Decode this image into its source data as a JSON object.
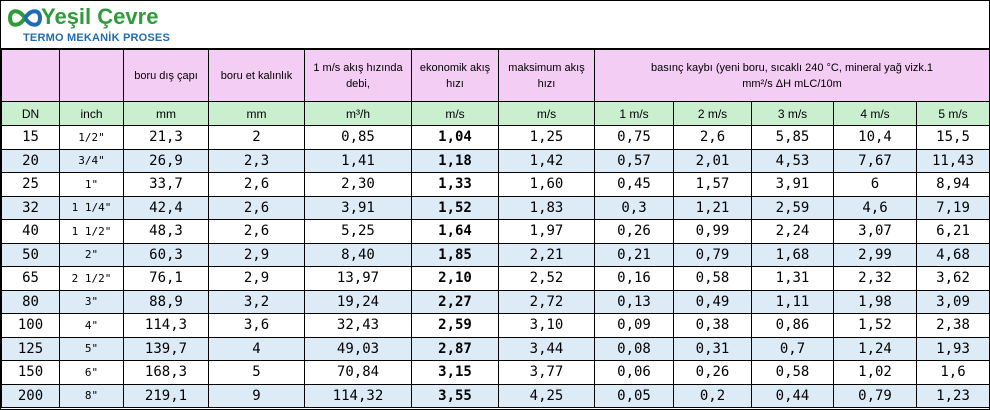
{
  "header": {
    "brand": "Yeşil Çevre",
    "tagline": "TERMO MEKANİK PROSES"
  },
  "table": {
    "column_headers": [
      "boru dış çapı",
      "boru et kalınlık",
      "1 m/s akış hızında debi,",
      "ekonomik akış hızı",
      "maksimum akış hızı"
    ],
    "pressure_header": "basınç kaybı (yeni boru, sıcaklı 240 °C, mineral yağ vizk.1 mm²/s  ΔH mLC/10m",
    "units": [
      "DN",
      "inch",
      "mm",
      "mm",
      "m³/h",
      "m/s",
      "m/s",
      "1 m/s",
      "2 m/s",
      "3 m/s",
      "4 m/s",
      "5 m/s"
    ],
    "rows": [
      [
        "15",
        "1/2\"",
        "21,3",
        "2",
        "0,85",
        "1,04",
        "1,25",
        "0,75",
        "2,6",
        "5,85",
        "10,4",
        "15,5"
      ],
      [
        "20",
        "3/4\"",
        "26,9",
        "2,3",
        "1,41",
        "1,18",
        "1,42",
        "0,57",
        "2,01",
        "4,53",
        "7,67",
        "11,43"
      ],
      [
        "25",
        "1\"",
        "33,7",
        "2,6",
        "2,30",
        "1,33",
        "1,60",
        "0,45",
        "1,57",
        "3,91",
        "6",
        "8,94"
      ],
      [
        "32",
        "1 1/4\"",
        "42,4",
        "2,6",
        "3,91",
        "1,52",
        "1,83",
        "0,3",
        "1,21",
        "2,59",
        "4,6",
        "7,19"
      ],
      [
        "40",
        "1 1/2\"",
        "48,3",
        "2,6",
        "5,25",
        "1,64",
        "1,97",
        "0,26",
        "0,99",
        "2,24",
        "3,07",
        "6,21"
      ],
      [
        "50",
        "2\"",
        "60,3",
        "2,9",
        "8,40",
        "1,85",
        "2,21",
        "0,21",
        "0,79",
        "1,68",
        "2,99",
        "4,68"
      ],
      [
        "65",
        "2 1/2\"",
        "76,1",
        "2,9",
        "13,97",
        "2,10",
        "2,52",
        "0,16",
        "0,58",
        "1,31",
        "2,32",
        "3,62"
      ],
      [
        "80",
        "3\"",
        "88,9",
        "3,2",
        "19,24",
        "2,27",
        "2,72",
        "0,13",
        "0,49",
        "1,11",
        "1,98",
        "3,09"
      ],
      [
        "100",
        "4\"",
        "114,3",
        "3,6",
        "32,43",
        "2,59",
        "3,10",
        "0,09",
        "0,38",
        "0,86",
        "1,52",
        "2,38"
      ],
      [
        "125",
        "5\"",
        "139,7",
        "4",
        "49,03",
        "2,87",
        "3,44",
        "0,08",
        "0,31",
        "0,7",
        "1,24",
        "1,93"
      ],
      [
        "150",
        "6\"",
        "168,3",
        "5",
        "70,84",
        "3,15",
        "3,77",
        "0,06",
        "0,26",
        "0,58",
        "1,02",
        "1,6"
      ],
      [
        "200",
        "8\"",
        "219,1",
        "9",
        "114,32",
        "3,55",
        "4,25",
        "0,05",
        "0,2",
        "0,44",
        "0,79",
        "1,23"
      ]
    ]
  }
}
